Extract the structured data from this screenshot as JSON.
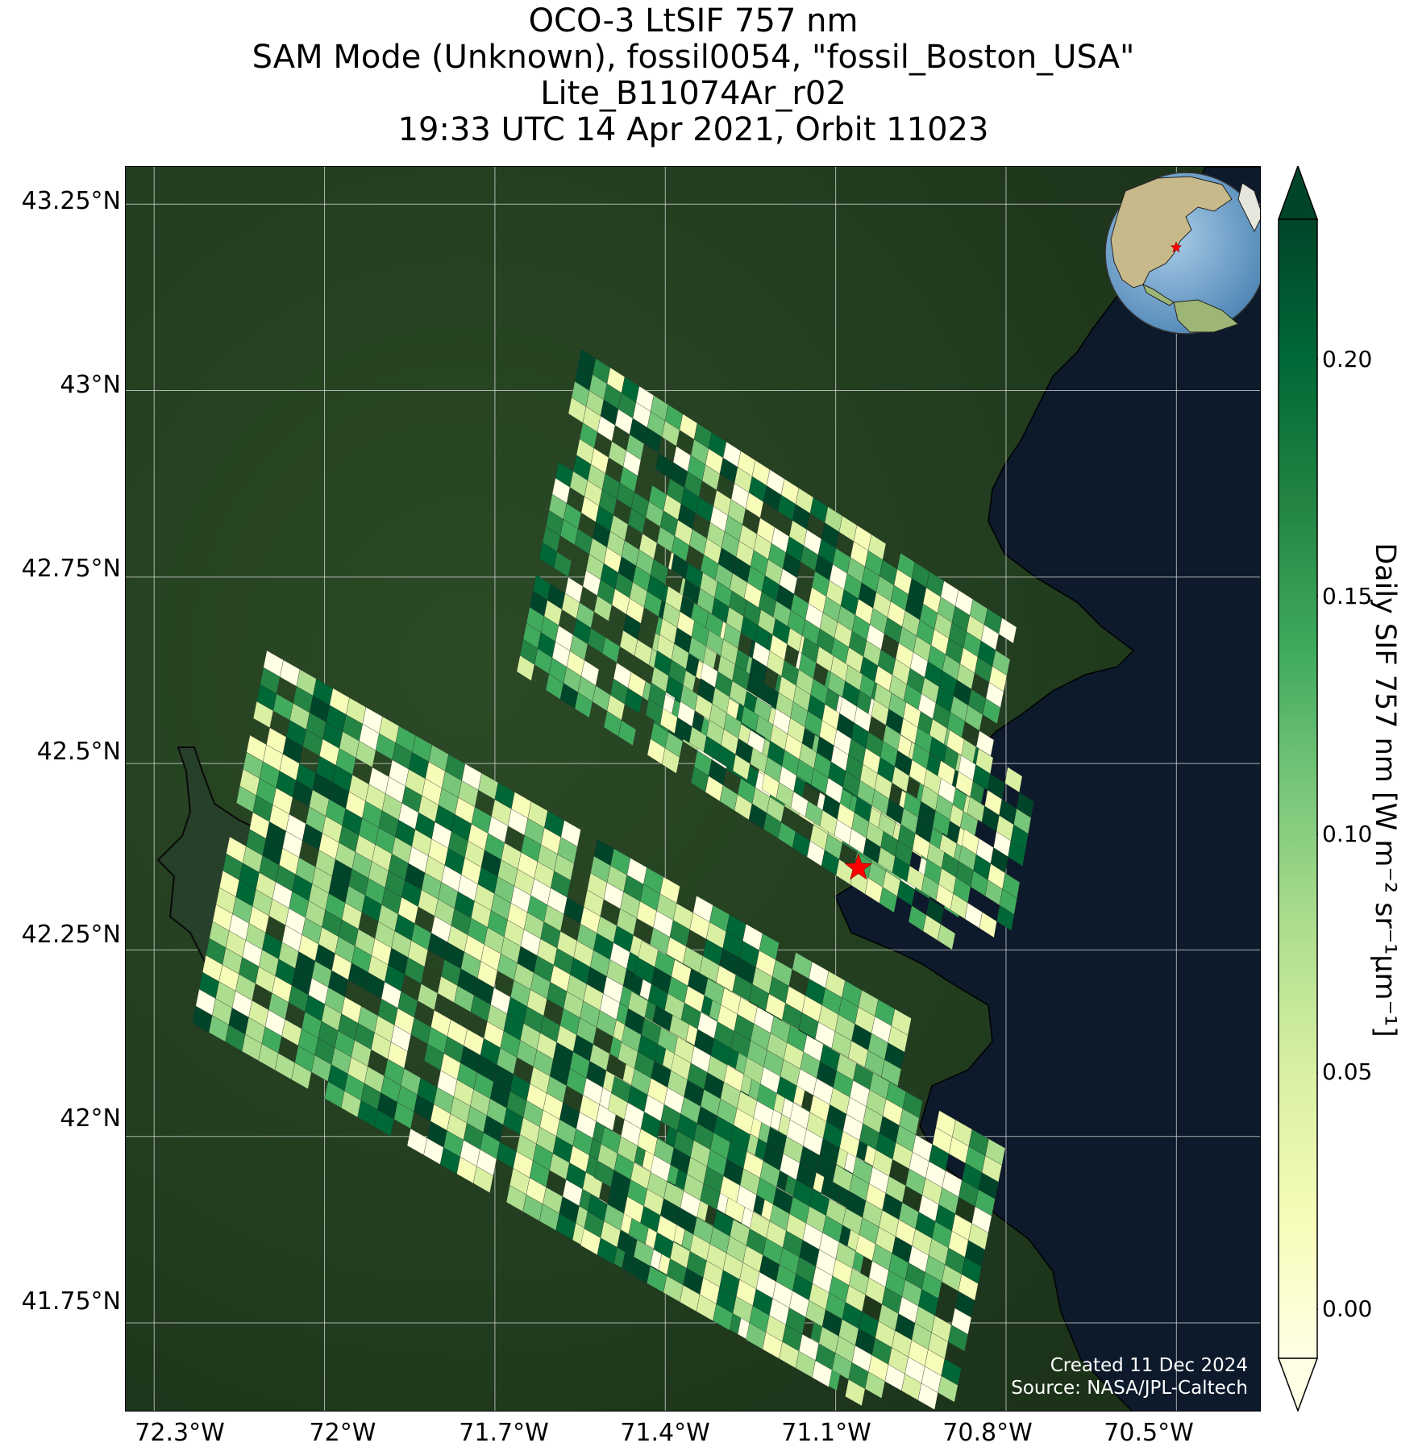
{
  "title": {
    "line1": "OCO-3 LtSIF 757 nm",
    "line2": "SAM Mode (Unknown), fossil0054, \"fossil_Boston_USA\"",
    "line3": "Lite_B11074Ar_r02",
    "line4": "19:33 UTC 14 Apr 2021, Orbit 11023"
  },
  "axes": {
    "lon_ticks": [
      "72.3°W",
      "72°W",
      "71.7°W",
      "71.4°W",
      "71.1°W",
      "70.8°W",
      "70.5°W"
    ],
    "lat_ticks": [
      "43.25°N",
      "43°N",
      "42.75°N",
      "42.5°N",
      "42.25°N",
      "42°N",
      "41.75°N"
    ],
    "lon_range": [
      -72.35,
      -70.35
    ],
    "lat_range": [
      41.63,
      43.3
    ]
  },
  "colorbar": {
    "label": "Daily SIF 757 nm [W m⁻² sr⁻¹μm⁻¹]",
    "ticks": [
      "0.20",
      "0.15",
      "0.10",
      "0.05",
      "0.00"
    ],
    "range": [
      -0.02,
      0.22
    ],
    "colormap": "YlGn",
    "extend": "both"
  },
  "target": {
    "name": "fossil_Boston_USA",
    "lon": -71.06,
    "lat": 42.36,
    "marker": "star-icon",
    "color": "#ff0000"
  },
  "credits": {
    "created": "Created 11 Dec 2024",
    "source": "Source: NASA/JPL-Caltech"
  },
  "colors": {
    "land": "#1f3a1f",
    "ocean": "#0d1b2a",
    "gridline": "#dddddd"
  }
}
